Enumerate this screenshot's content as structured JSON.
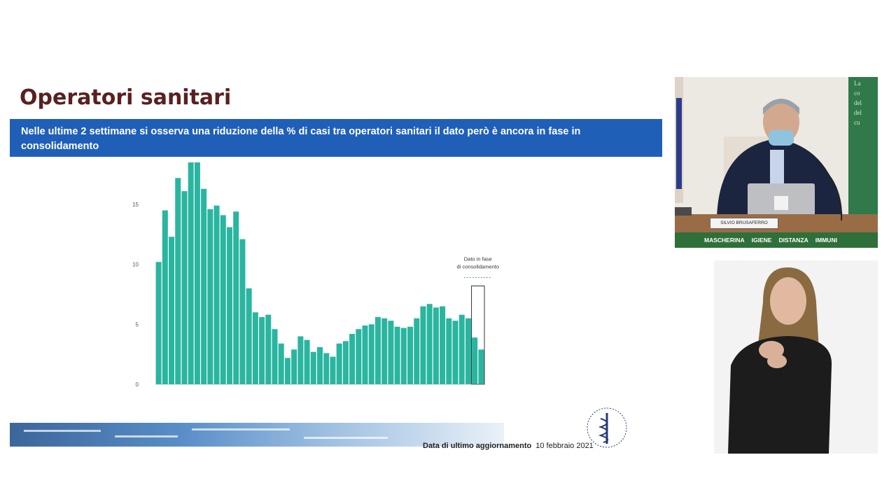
{
  "slide": {
    "title": "Operatori sanitari",
    "banner": "Nelle ultime 2 settimane si osserva una riduzione della % di casi tra operatori sanitari il dato però è ancora in fase in consolidamento",
    "footer_label": "Data di ultimo aggiornamento",
    "footer_date": "10 febbraio 2021"
  },
  "video": {
    "nameplate": "SILVIO BRUSAFERRO",
    "strip_items": [
      "MASCHERINA",
      "IGIENE",
      "DISTANZA",
      "IMMUNI"
    ],
    "panel_letters": [
      "La",
      "co",
      "del",
      "del",
      "cu"
    ]
  },
  "colors": {
    "bar": "#2ab5a0",
    "banner": "#1f5fb8",
    "title": "#5a2020"
  },
  "chart_data": {
    "type": "bar",
    "ylim": [
      0,
      18.5
    ],
    "yticks": [
      "0",
      "5",
      "10",
      "15"
    ],
    "values": [
      10.2,
      14.5,
      12.3,
      17.2,
      16.1,
      18.5,
      18.5,
      16.3,
      14.6,
      14.9,
      14.1,
      13.1,
      14.4,
      12.1,
      8.0,
      6.0,
      5.6,
      5.8,
      4.6,
      3.4,
      2.2,
      2.9,
      4.0,
      3.7,
      2.7,
      3.1,
      2.6,
      2.3,
      3.4,
      3.6,
      4.2,
      4.6,
      4.9,
      5.0,
      5.6,
      5.5,
      5.3,
      4.8,
      4.7,
      4.8,
      5.5,
      6.5,
      6.7,
      6.4,
      6.5,
      5.5,
      5.3,
      5.8,
      5.5,
      3.9,
      2.9
    ],
    "consolidating_count": 2,
    "annotation": "Dato in fase di consolidamento",
    "grid": false
  }
}
